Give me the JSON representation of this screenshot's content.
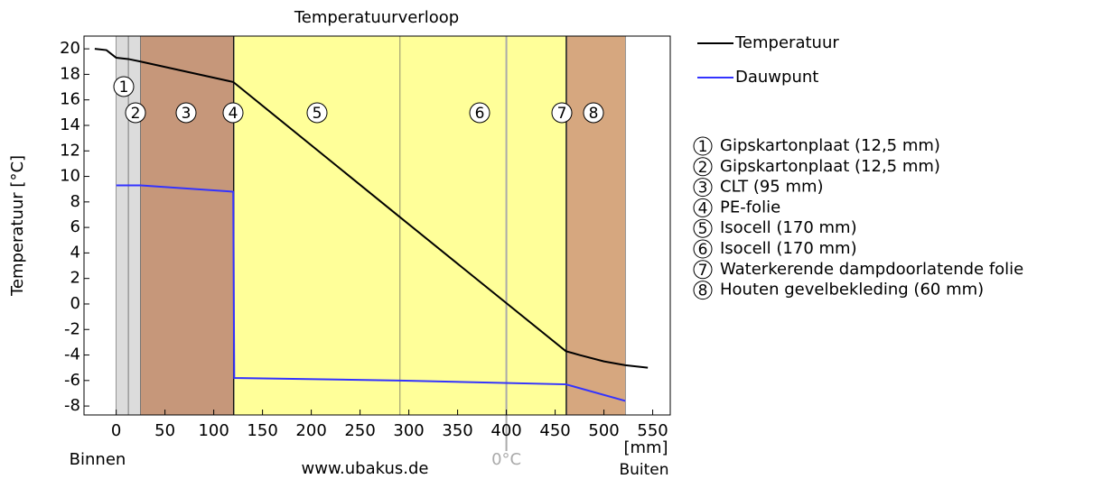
{
  "chart_data": {
    "type": "line",
    "title": "Temperatuurverloop",
    "y_label": "Temperatuur [°C]",
    "x_unit": "[mm]",
    "inside_label": "Binnen",
    "outside_label": "Buiten",
    "source": "www.ubakus.de",
    "xlim": [
      -33,
      568
    ],
    "ylim": [
      -8.7,
      21
    ],
    "xticks": [
      0,
      50,
      100,
      150,
      200,
      250,
      300,
      350,
      400,
      450,
      500,
      550
    ],
    "yticks": [
      20,
      18,
      16,
      14,
      12,
      10,
      8,
      6,
      4,
      2,
      0,
      -2,
      -4,
      -6,
      -8
    ],
    "zero_line": {
      "x": 400,
      "label": "0°C",
      "color": "#aaaaaa"
    },
    "series": [
      {
        "name": "Temperatuur",
        "color": "#000000",
        "x": [
          -22,
          -10,
          0,
          12.5,
          25,
          120,
          291,
          461,
          475,
          500,
          522,
          545
        ],
        "values": [
          20,
          19.9,
          19.3,
          19.2,
          19.0,
          17.4,
          6.8,
          -3.7,
          -4.0,
          -4.5,
          -4.8,
          -5.0
        ]
      },
      {
        "name": "Dauwpunt",
        "color": "#3333ff",
        "x": [
          0,
          25,
          120,
          121,
          291,
          461,
          522
        ],
        "values": [
          9.3,
          9.3,
          8.8,
          -5.8,
          -6.0,
          -6.3,
          -7.6
        ]
      }
    ],
    "layers": [
      {
        "number": "1",
        "name": "Gipskartonplaat (12,5 mm)",
        "start": 0,
        "end": 12.5,
        "color": "#dcdcdc"
      },
      {
        "number": "2",
        "name": "Gipskartonplaat (12,5 mm)",
        "start": 12.5,
        "end": 25,
        "color": "#dcdcdc"
      },
      {
        "number": "3",
        "name": "CLT (95 mm)",
        "start": 25,
        "end": 120,
        "color": "#c6977a"
      },
      {
        "number": "4",
        "name": "PE-folie",
        "start": 120,
        "end": 121,
        "color": "#000000"
      },
      {
        "number": "5",
        "name": "Isocell (170 mm)",
        "start": 121,
        "end": 291,
        "color": "#ffff99"
      },
      {
        "number": "6",
        "name": "Isocell (170 mm)",
        "start": 291,
        "end": 461,
        "color": "#ffff99"
      },
      {
        "number": "7",
        "name": "Waterkerende dampdoorlatende folie",
        "start": 461,
        "end": 462,
        "color": "#000000"
      },
      {
        "number": "8",
        "name": "Houten gevelbekleding (60 mm)",
        "start": 462,
        "end": 522,
        "color": "#d6a77f"
      }
    ]
  }
}
